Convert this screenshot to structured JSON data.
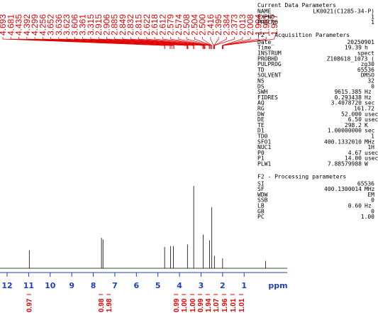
{
  "chart_data": {
    "type": "nmr",
    "x_label": "ppm",
    "xlim": [
      12.33,
      -1.0
    ],
    "xticks": [
      12,
      11,
      10,
      9,
      8,
      7,
      6,
      5,
      4,
      3,
      2,
      1
    ],
    "ylim": [
      0,
      100
    ],
    "color": "#000000",
    "peaks": {
      "ppm": [
        10.97,
        7.62,
        7.55,
        4.69,
        4.41,
        4.28,
        3.63,
        3.34,
        2.9,
        2.6,
        2.5,
        2.38,
        2.0,
        0.0
      ],
      "values": [
        22,
        37,
        35,
        26,
        27,
        27,
        29,
        100,
        41,
        34,
        74,
        15,
        12,
        9
      ]
    },
    "peak_picks": {
      "color": "#e00000",
      "values": [
        4.693,
        4.681,
        4.435,
        4.392,
        4.299,
        4.256,
        3.652,
        3.636,
        3.623,
        3.606,
        3.361,
        3.315,
        2.915,
        2.906,
        2.885,
        2.849,
        2.832,
        2.815,
        2.622,
        2.618,
        2.612,
        2.579,
        2.574,
        2.508,
        2.504,
        2.5,
        2.416,
        2.395,
        2.384,
        2.373,
        2.013,
        2.008,
        1.994,
        1.981,
        1.977
      ],
      "value_labels": [
        "4.693",
        "4.681",
        "4.435",
        "4.392",
        "4.299",
        "4.256",
        "3.652",
        "3.636",
        "3.623",
        "3.606",
        "3.361",
        "3.315",
        "2.915",
        "2.906",
        "2.885",
        "2.849",
        "2.832",
        "2.815",
        "2.622",
        "2.618",
        "2.612",
        "2.579",
        "2.574",
        "2.508",
        "2.504",
        "2.500",
        "2.416",
        "2.395",
        "2.384",
        "2.373",
        "2.013",
        "2.008",
        "1.994",
        "1.981",
        "1.977"
      ]
    },
    "integrals": {
      "color": "#e00000",
      "ppm": [
        10.99,
        7.65,
        7.29,
        4.16,
        3.8,
        3.41,
        3.05,
        2.69,
        2.32,
        1.93,
        1.54,
        1.14
      ],
      "values": [
        0.97,
        0.98,
        1.98,
        0.99,
        1.0,
        1.0,
        0.99,
        1.94,
        1.07,
        1.96,
        1.01,
        1.01
      ],
      "value_labels": [
        "0.97",
        "0.98",
        "1.98",
        "0.99",
        "1.00",
        "1.00",
        "0.99",
        "1.94",
        "1.07",
        "1.96",
        "1.01",
        "1.01"
      ]
    },
    "parameters": [
      {
        "title": "Current Data Parameters",
        "rows": [
          [
            "NAME",
            "LK0021(C1285-34-P)",
            ""
          ],
          [
            "EXPNO",
            "1",
            ""
          ],
          [
            "PROCNO",
            "1",
            ""
          ]
        ]
      },
      {
        "title": "F2 - Acquisition Parameters",
        "rows": [
          [
            "Date_",
            "20250901",
            ""
          ],
          [
            "Time",
            "19.39",
            "h"
          ],
          [
            "INSTRUM",
            "spect",
            ""
          ],
          [
            "PROBHD",
            "Z108618_1073 (",
            ""
          ],
          [
            "PULPROG",
            "zg30",
            ""
          ],
          [
            "TD",
            "65536",
            ""
          ],
          [
            "SOLVENT",
            "DMSO",
            ""
          ],
          [
            "NS",
            "32",
            ""
          ],
          [
            "DS",
            "0",
            ""
          ],
          [
            "SWH",
            "9615.385",
            "Hz"
          ],
          [
            "FIDRES",
            "0.293438",
            "Hz"
          ],
          [
            "AQ",
            "3.4078720",
            "sec"
          ],
          [
            "RG",
            "161.72",
            ""
          ],
          [
            "DW",
            "52.000",
            "usec"
          ],
          [
            "DE",
            "6.50",
            "usec"
          ],
          [
            "TE",
            "298.2",
            "K"
          ],
          [
            "D1",
            "1.00000000",
            "sec"
          ],
          [
            "TD0",
            "1",
            ""
          ],
          [
            "SFO1",
            "400.1332010",
            "MHz"
          ],
          [
            "NUC1",
            "1H",
            ""
          ],
          [
            "P0",
            "4.67",
            "usec"
          ],
          [
            "P1",
            "14.00",
            "usec"
          ],
          [
            "PLW1",
            "7.88579988",
            "W"
          ]
        ]
      },
      {
        "title": "F2 - Processing parameters",
        "rows": [
          [
            "SI",
            "65536",
            ""
          ],
          [
            "SF",
            "400.1300014",
            "MHz"
          ],
          [
            "WDW",
            "EM",
            ""
          ],
          [
            "SSB",
            "0",
            ""
          ],
          [
            "LB",
            "0.60",
            "Hz"
          ],
          [
            "GB",
            "0",
            ""
          ],
          [
            "PC",
            "1.00",
            ""
          ]
        ]
      }
    ]
  }
}
